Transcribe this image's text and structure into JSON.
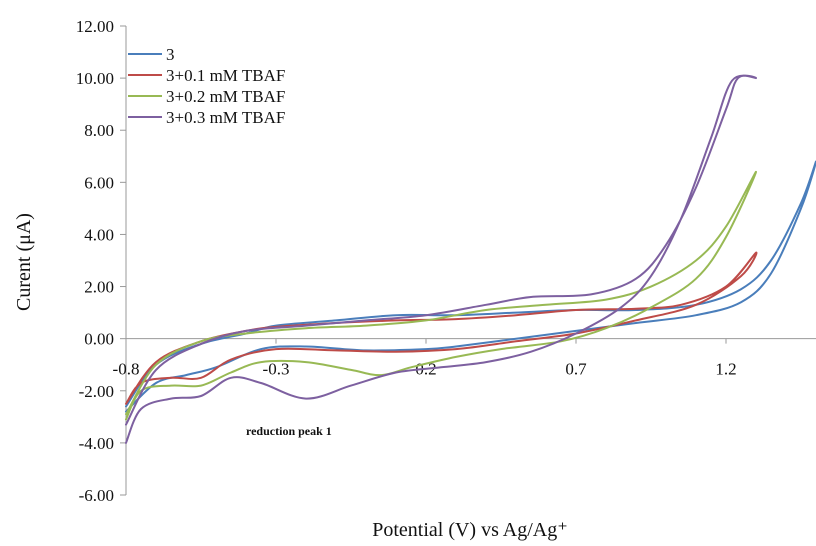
{
  "chart_data": {
    "type": "line",
    "xlabel": "Potential (V) vs Ag/Ag⁺",
    "ylabel": "Curent (μA)",
    "xlim": [
      -0.8,
      1.5
    ],
    "ylim": [
      -6,
      12
    ],
    "x_ticks": [
      "-0.8",
      "-0.3",
      "0.2",
      "0.7",
      "1.2"
    ],
    "y_ticks": [
      "12.00",
      "10.00",
      "8.00",
      "6.00",
      "4.00",
      "2.00",
      "0.00",
      "-2.00",
      "-4.00",
      "-6.00"
    ],
    "legend_position": "top-left",
    "annotation": {
      "text": "reduction peak 1",
      "x": -0.4,
      "y": -3.7
    },
    "series": [
      {
        "name": "3",
        "color": "#4a7ebb",
        "points": [
          [
            -0.8,
            -2.6
          ],
          [
            -0.7,
            -1.0
          ],
          [
            -0.55,
            -0.2
          ],
          [
            -0.4,
            0.2
          ],
          [
            -0.3,
            0.5
          ],
          [
            -0.1,
            0.7
          ],
          [
            0.1,
            0.9
          ],
          [
            0.3,
            0.9
          ],
          [
            0.5,
            1.0
          ],
          [
            0.7,
            1.1
          ],
          [
            0.9,
            1.1
          ],
          [
            1.1,
            1.3
          ],
          [
            1.25,
            1.9
          ],
          [
            1.35,
            3.0
          ],
          [
            1.45,
            5.2
          ],
          [
            1.5,
            6.8
          ],
          [
            1.45,
            5.0
          ],
          [
            1.35,
            2.5
          ],
          [
            1.25,
            1.4
          ],
          [
            1.1,
            0.9
          ],
          [
            0.9,
            0.6
          ],
          [
            0.7,
            0.3
          ],
          [
            0.5,
            0.0
          ],
          [
            0.3,
            -0.3
          ],
          [
            0.2,
            -0.4
          ],
          [
            0.0,
            -0.45
          ],
          [
            -0.2,
            -0.3
          ],
          [
            -0.35,
            -0.4
          ],
          [
            -0.5,
            -1.1
          ],
          [
            -0.6,
            -1.4
          ],
          [
            -0.7,
            -1.7
          ],
          [
            -0.8,
            -2.8
          ]
        ]
      },
      {
        "name": "3+0.1 mM TBAF",
        "color": "#be4b48",
        "points": [
          [
            -0.8,
            -2.5
          ],
          [
            -0.7,
            -0.9
          ],
          [
            -0.55,
            -0.1
          ],
          [
            -0.4,
            0.3
          ],
          [
            -0.3,
            0.45
          ],
          [
            -0.1,
            0.6
          ],
          [
            0.1,
            0.7
          ],
          [
            0.3,
            0.75
          ],
          [
            0.5,
            0.9
          ],
          [
            0.7,
            1.1
          ],
          [
            0.9,
            1.15
          ],
          [
            1.05,
            1.3
          ],
          [
            1.2,
            2.0
          ],
          [
            1.3,
            3.3
          ],
          [
            1.25,
            2.4
          ],
          [
            1.1,
            1.3
          ],
          [
            0.9,
            0.7
          ],
          [
            0.7,
            0.2
          ],
          [
            0.5,
            -0.1
          ],
          [
            0.3,
            -0.4
          ],
          [
            0.1,
            -0.5
          ],
          [
            -0.1,
            -0.45
          ],
          [
            -0.3,
            -0.4
          ],
          [
            -0.45,
            -0.8
          ],
          [
            -0.55,
            -1.5
          ],
          [
            -0.65,
            -1.5
          ],
          [
            -0.75,
            -1.7
          ],
          [
            -0.8,
            -2.5
          ]
        ]
      },
      {
        "name": "3+0.2 mM TBAF",
        "color": "#98b954",
        "points": [
          [
            -0.8,
            -2.9
          ],
          [
            -0.7,
            -1.0
          ],
          [
            -0.55,
            -0.1
          ],
          [
            -0.4,
            0.2
          ],
          [
            -0.2,
            0.4
          ],
          [
            0.0,
            0.5
          ],
          [
            0.2,
            0.7
          ],
          [
            0.4,
            1.1
          ],
          [
            0.6,
            1.3
          ],
          [
            0.8,
            1.5
          ],
          [
            0.95,
            2.0
          ],
          [
            1.1,
            3.0
          ],
          [
            1.2,
            4.3
          ],
          [
            1.3,
            6.4
          ],
          [
            1.2,
            3.9
          ],
          [
            1.1,
            2.3
          ],
          [
            0.95,
            1.2
          ],
          [
            0.8,
            0.4
          ],
          [
            0.65,
            -0.1
          ],
          [
            0.45,
            -0.4
          ],
          [
            0.3,
            -0.7
          ],
          [
            0.15,
            -1.1
          ],
          [
            0.05,
            -1.4
          ],
          [
            -0.05,
            -1.2
          ],
          [
            -0.2,
            -0.9
          ],
          [
            -0.35,
            -0.9
          ],
          [
            -0.45,
            -1.3
          ],
          [
            -0.55,
            -1.8
          ],
          [
            -0.65,
            -1.8
          ],
          [
            -0.75,
            -2.0
          ],
          [
            -0.8,
            -3.1
          ]
        ]
      },
      {
        "name": "3+0.3 mM TBAF",
        "color": "#7d60a0",
        "points": [
          [
            -0.8,
            -3.3
          ],
          [
            -0.7,
            -1.2
          ],
          [
            -0.55,
            -0.2
          ],
          [
            -0.4,
            0.3
          ],
          [
            -0.2,
            0.5
          ],
          [
            0.0,
            0.7
          ],
          [
            0.2,
            0.9
          ],
          [
            0.4,
            1.3
          ],
          [
            0.55,
            1.6
          ],
          [
            0.75,
            1.7
          ],
          [
            0.9,
            2.3
          ],
          [
            1.0,
            3.6
          ],
          [
            1.1,
            5.8
          ],
          [
            1.2,
            8.8
          ],
          [
            1.24,
            10.0
          ],
          [
            1.3,
            10.0
          ],
          [
            1.22,
            9.9
          ],
          [
            1.15,
            7.7
          ],
          [
            1.05,
            4.6
          ],
          [
            0.95,
            2.4
          ],
          [
            0.85,
            1.2
          ],
          [
            0.7,
            0.2
          ],
          [
            0.55,
            -0.5
          ],
          [
            0.4,
            -0.9
          ],
          [
            0.25,
            -1.1
          ],
          [
            0.1,
            -1.3
          ],
          [
            -0.05,
            -1.8
          ],
          [
            -0.2,
            -2.3
          ],
          [
            -0.35,
            -1.7
          ],
          [
            -0.45,
            -1.5
          ],
          [
            -0.55,
            -2.2
          ],
          [
            -0.65,
            -2.3
          ],
          [
            -0.75,
            -2.7
          ],
          [
            -0.8,
            -4.0
          ]
        ]
      }
    ]
  }
}
